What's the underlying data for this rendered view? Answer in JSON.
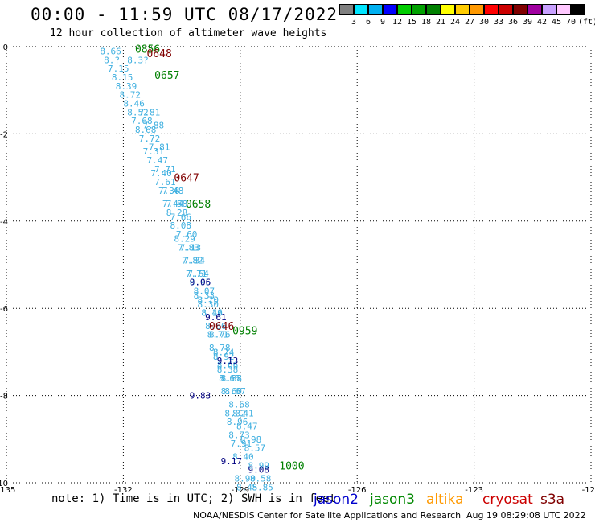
{
  "title": "00:00 - 11:59 UTC 08/17/2022",
  "subtitle": "12 hour collection of altimeter wave heights",
  "color_scale": {
    "labels": [
      "3",
      "6",
      "9",
      "12",
      "15",
      "18",
      "21",
      "24",
      "27",
      "30",
      "33",
      "36",
      "39",
      "42",
      "45",
      "70"
    ],
    "unit": "(ft)",
    "colors": [
      "#808080",
      "#00e5ff",
      "#00b0f0",
      "#0000ff",
      "#00cc00",
      "#00a000",
      "#008000",
      "#ffff00",
      "#ffcc00",
      "#ff9900",
      "#ff0000",
      "#cc0000",
      "#800000",
      "#a000a0",
      "#c8a0ff",
      "#ffc8ff",
      "#000000"
    ]
  },
  "note": "note: 1) Time is in UTC; 2) SWH is in feet",
  "sources": [
    {
      "name": "jason2",
      "color": "#0000cc"
    },
    {
      "name": "jason3",
      "color": "#008800"
    },
    {
      "name": "altika",
      "color": "#ff9900"
    },
    {
      "name": "cryosat",
      "color": "#cc0000"
    },
    {
      "name": "s3a",
      "color": "#800000"
    }
  ],
  "footer_left": "NOAA/NESDIS Center for Satellite Applications and Research",
  "footer_right": "Aug 19 08:29:08 UTC 2022",
  "chart_data": {
    "type": "scatter",
    "xlim": [
      -135,
      -120
    ],
    "ylim": [
      -10,
      0
    ],
    "x_ticks": [
      -135,
      -132,
      -129,
      -126,
      -123,
      -120
    ],
    "y_ticks": [
      0,
      -2,
      -4,
      -6,
      -8,
      -10
    ],
    "grid": true,
    "x_tick_labels": [
      "-135",
      "-132",
      "-129",
      "-126",
      "-123",
      "-120"
    ],
    "y_tick_labels": [
      "0",
      "-2",
      "-4",
      "-6",
      "-8",
      "-10"
    ],
    "track_a": {
      "color": "#40b0e0",
      "points": [
        {
          "x": -132.6,
          "y": -0.1,
          "v": "8.66"
        },
        {
          "x": -132.5,
          "y": -0.3,
          "v": "8.?"
        },
        {
          "x": -132.4,
          "y": -0.5,
          "v": "7.15"
        },
        {
          "x": -132.3,
          "y": -0.7,
          "v": "8.15"
        },
        {
          "x": -132.2,
          "y": -0.9,
          "v": "8.39"
        },
        {
          "x": -132.1,
          "y": -1.1,
          "v": "8.72"
        },
        {
          "x": -132.0,
          "y": -1.3,
          "v": "8.46"
        },
        {
          "x": -131.9,
          "y": -1.5,
          "v": "8.52"
        },
        {
          "x": -131.8,
          "y": -1.7,
          "v": "7.68"
        },
        {
          "x": -131.7,
          "y": -1.9,
          "v": "8.68"
        },
        {
          "x": -131.6,
          "y": -2.1,
          "v": "7.72"
        },
        {
          "x": -131.5,
          "y": -2.4,
          "v": "7.31"
        },
        {
          "x": -131.4,
          "y": -2.6,
          "v": "7.47"
        },
        {
          "x": -131.3,
          "y": -2.9,
          "v": "7.40"
        },
        {
          "x": -131.2,
          "y": -3.1,
          "v": "7.61"
        },
        {
          "x": -131.1,
          "y": -3.3,
          "v": "7.36"
        },
        {
          "x": -131.0,
          "y": -3.6,
          "v": "7.44"
        },
        {
          "x": -130.9,
          "y": -3.8,
          "v": "8.28"
        },
        {
          "x": -130.8,
          "y": -4.1,
          "v": "8.08"
        },
        {
          "x": -130.7,
          "y": -4.4,
          "v": "8.29"
        },
        {
          "x": -130.6,
          "y": -4.6,
          "v": "7.83"
        },
        {
          "x": -130.5,
          "y": -4.9,
          "v": "7.82"
        },
        {
          "x": -130.4,
          "y": -5.2,
          "v": "7.71"
        },
        {
          "x": -130.3,
          "y": -5.4,
          "v": "8.95"
        },
        {
          "x": -130.2,
          "y": -5.7,
          "v": "8.33"
        },
        {
          "x": -130.1,
          "y": -5.9,
          "v": "8.30"
        },
        {
          "x": -130.0,
          "y": -6.1,
          "v": "8.19"
        },
        {
          "x": -129.9,
          "y": -6.4,
          "v": "8.86"
        },
        {
          "x": -129.85,
          "y": -6.6,
          "v": "8.71"
        },
        {
          "x": -129.8,
          "y": -6.9,
          "v": "8.78"
        },
        {
          "x": -129.7,
          "y": -7.1,
          "v": "8.92"
        },
        {
          "x": -129.6,
          "y": -7.4,
          "v": "8.38"
        },
        {
          "x": -129.55,
          "y": -7.6,
          "v": "8.65"
        },
        {
          "x": -129.5,
          "y": -7.9,
          "v": "8.60"
        },
        {
          "x": -129.4,
          "y": -8.4,
          "v": "8.32"
        },
        {
          "x": -129.35,
          "y": -8.6,
          "v": "8.96"
        },
        {
          "x": -129.3,
          "y": -8.9,
          "v": "8.73"
        },
        {
          "x": -129.25,
          "y": -9.1,
          "v": "7.91"
        },
        {
          "x": -129.2,
          "y": -9.4,
          "v": "8.40"
        },
        {
          "x": -129.15,
          "y": -9.9,
          "v": "8.90"
        },
        {
          "x": -129.1,
          "y": -10.1,
          "v": "8.45"
        }
      ]
    },
    "track_b": {
      "color": "#40b0e0",
      "points": [
        {
          "x": -131.9,
          "y": -0.3,
          "v": "8.3?"
        },
        {
          "x": -131.6,
          "y": -1.5,
          "v": "7.81"
        },
        {
          "x": -131.5,
          "y": -1.8,
          "v": "7.88"
        },
        {
          "x": -131.35,
          "y": -2.3,
          "v": "7.81"
        },
        {
          "x": -131.2,
          "y": -2.8,
          "v": "7.71"
        },
        {
          "x": -131.0,
          "y": -3.3,
          "v": "7.48"
        },
        {
          "x": -130.9,
          "y": -3.6,
          "v": "7.58"
        },
        {
          "x": -130.8,
          "y": -3.9,
          "v": "7.66"
        },
        {
          "x": -130.65,
          "y": -4.3,
          "v": "7.60"
        },
        {
          "x": -130.55,
          "y": -4.6,
          "v": "7.13"
        },
        {
          "x": -130.45,
          "y": -4.9,
          "v": "7.34"
        },
        {
          "x": -130.35,
          "y": -5.2,
          "v": "7.64"
        },
        {
          "x": -130.2,
          "y": -5.6,
          "v": "8.07"
        },
        {
          "x": -130.1,
          "y": -5.8,
          "v": "8.70"
        },
        {
          "x": -130.0,
          "y": -6.1,
          "v": "8.46"
        },
        {
          "x": -129.8,
          "y": -6.6,
          "v": "8.76"
        },
        {
          "x": -129.7,
          "y": -7.0,
          "v": "8.74"
        },
        {
          "x": -129.6,
          "y": -7.3,
          "v": "8.66"
        },
        {
          "x": -129.5,
          "y": -7.6,
          "v": "8.88"
        },
        {
          "x": -129.4,
          "y": -7.9,
          "v": "8.67"
        },
        {
          "x": -129.3,
          "y": -8.2,
          "v": "8.68"
        },
        {
          "x": -129.2,
          "y": -8.4,
          "v": "8.41"
        },
        {
          "x": -129.1,
          "y": -8.7,
          "v": "8.47"
        },
        {
          "x": -129.0,
          "y": -9.0,
          "v": "8.98"
        },
        {
          "x": -128.9,
          "y": -9.2,
          "v": "8.57"
        },
        {
          "x": -128.8,
          "y": -9.6,
          "v": "8.99"
        },
        {
          "x": -128.75,
          "y": -9.9,
          "v": "8.58"
        },
        {
          "x": -128.7,
          "y": -10.1,
          "v": "8.85"
        }
      ]
    },
    "blue_labels": [
      {
        "x": -130.3,
        "y": -5.4,
        "v": "9.06"
      },
      {
        "x": -129.9,
        "y": -6.2,
        "v": "9.61"
      },
      {
        "x": -129.6,
        "y": -7.2,
        "v": "9.13"
      },
      {
        "x": -130.3,
        "y": -8.0,
        "v": "9.83"
      },
      {
        "x": -129.5,
        "y": -9.5,
        "v": "9.17"
      },
      {
        "x": -128.8,
        "y": -9.7,
        "v": "9.08"
      }
    ],
    "times": [
      {
        "x": -131.7,
        "y": -0.05,
        "v": "0856",
        "color": "#008000"
      },
      {
        "x": -131.4,
        "y": -0.15,
        "v": "0648",
        "color": "#800000"
      },
      {
        "x": -131.2,
        "y": -0.65,
        "v": "0657",
        "color": "#008000"
      },
      {
        "x": -130.7,
        "y": -3.0,
        "v": "0647",
        "color": "#800000"
      },
      {
        "x": -130.4,
        "y": -3.6,
        "v": "0658",
        "color": "#008000"
      },
      {
        "x": -129.8,
        "y": -6.4,
        "v": "0646",
        "color": "#800000"
      },
      {
        "x": -129.2,
        "y": -6.5,
        "v": "0959",
        "color": "#008000"
      },
      {
        "x": -128.0,
        "y": -9.6,
        "v": "1000",
        "color": "#008000"
      }
    ]
  }
}
